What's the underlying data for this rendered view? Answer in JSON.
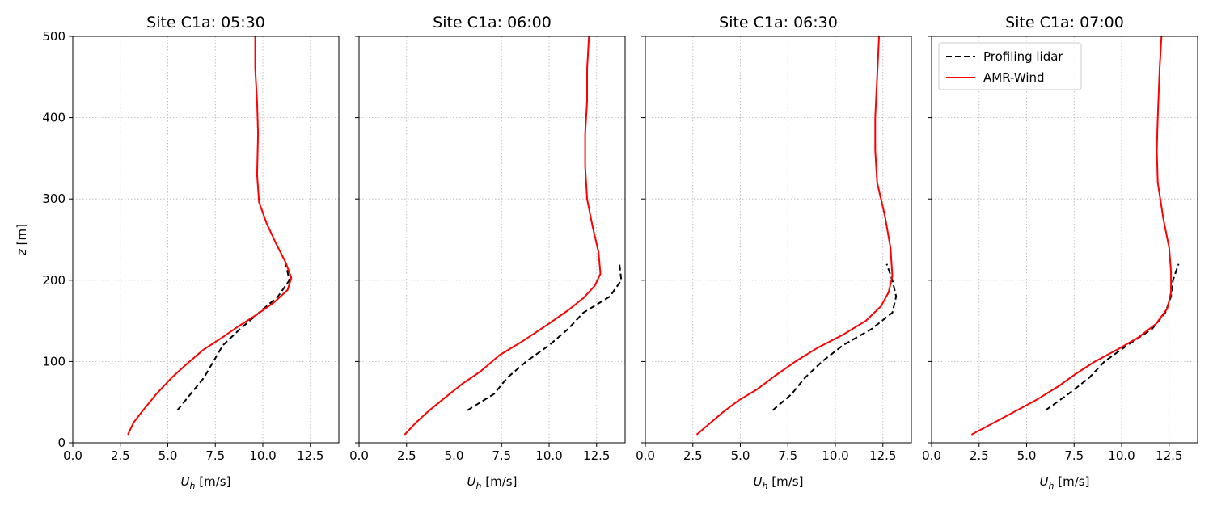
{
  "chart_data": [
    {
      "type": "line",
      "title": "Site C1a: 05:30",
      "xlabel": "U_h [m/s]",
      "ylabel": "z [m]",
      "xlim": [
        0,
        14
      ],
      "ylim": [
        0,
        500
      ],
      "xticks": [
        "0.0",
        "2.5",
        "5.0",
        "7.5",
        "10.0",
        "12.5"
      ],
      "yticks": [
        "0",
        "100",
        "200",
        "300",
        "400",
        "500"
      ],
      "grid": true,
      "series": [
        {
          "name": "Profiling lidar",
          "style": "dashed",
          "color": "#000000",
          "points": [
            [
              5.5,
              40
            ],
            [
              6.2,
              60
            ],
            [
              6.9,
              80
            ],
            [
              7.4,
              100
            ],
            [
              7.9,
              120
            ],
            [
              8.8,
              140
            ],
            [
              9.8,
              160
            ],
            [
              10.8,
              180
            ],
            [
              11.4,
              200
            ],
            [
              11.2,
              220
            ]
          ]
        },
        {
          "name": "AMR-Wind",
          "style": "solid",
          "color": "#ff0000",
          "points": [
            [
              2.9,
              10
            ],
            [
              3.2,
              25
            ],
            [
              3.7,
              40
            ],
            [
              4.4,
              60
            ],
            [
              5.2,
              80
            ],
            [
              6.0,
              97
            ],
            [
              6.9,
              115
            ],
            [
              7.9,
              130
            ],
            [
              8.7,
              143
            ],
            [
              9.7,
              158
            ],
            [
              10.6,
              173
            ],
            [
              11.3,
              188
            ],
            [
              11.5,
              203
            ],
            [
              11.2,
              222
            ],
            [
              10.7,
              245
            ],
            [
              10.2,
              270
            ],
            [
              9.8,
              296
            ],
            [
              9.7,
              330
            ],
            [
              9.75,
              380
            ],
            [
              9.7,
              420
            ],
            [
              9.6,
              460
            ],
            [
              9.6,
              500
            ]
          ]
        }
      ]
    },
    {
      "type": "line",
      "title": "Site C1a: 06:00",
      "xlabel": "U_h [m/s]",
      "ylabel": "",
      "xlim": [
        0,
        14
      ],
      "ylim": [
        0,
        500
      ],
      "xticks": [
        "0.0",
        "2.5",
        "5.0",
        "7.5",
        "10.0",
        "12.5"
      ],
      "grid": true,
      "series": [
        {
          "name": "Profiling lidar",
          "style": "dashed",
          "color": "#000000",
          "points": [
            [
              5.7,
              40
            ],
            [
              7.1,
              60
            ],
            [
              7.8,
              80
            ],
            [
              8.8,
              100
            ],
            [
              10.0,
              120
            ],
            [
              11.0,
              140
            ],
            [
              11.8,
              160
            ],
            [
              13.2,
              180
            ],
            [
              13.8,
              200
            ],
            [
              13.7,
              220
            ]
          ]
        },
        {
          "name": "AMR-Wind",
          "style": "solid",
          "color": "#ff0000",
          "points": [
            [
              2.4,
              10
            ],
            [
              3.0,
              25
            ],
            [
              3.7,
              40
            ],
            [
              4.6,
              57
            ],
            [
              5.4,
              72
            ],
            [
              6.4,
              88
            ],
            [
              7.4,
              108
            ],
            [
              8.6,
              125
            ],
            [
              9.9,
              145
            ],
            [
              11.0,
              163
            ],
            [
              11.8,
              178
            ],
            [
              12.4,
              193
            ],
            [
              12.7,
              208
            ],
            [
              12.6,
              235
            ],
            [
              12.3,
              265
            ],
            [
              12.0,
              300
            ],
            [
              11.9,
              340
            ],
            [
              11.9,
              380
            ],
            [
              12.0,
              420
            ],
            [
              12.0,
              460
            ],
            [
              12.1,
              500
            ]
          ]
        }
      ]
    },
    {
      "type": "line",
      "title": "Site C1a: 06:30",
      "xlabel": "U_h [m/s]",
      "ylabel": "",
      "xlim": [
        0,
        14
      ],
      "ylim": [
        0,
        500
      ],
      "xticks": [
        "0.0",
        "2.5",
        "5.0",
        "7.5",
        "10.0",
        "12.5"
      ],
      "grid": true,
      "series": [
        {
          "name": "Profiling lidar",
          "style": "dashed",
          "color": "#000000",
          "points": [
            [
              6.7,
              40
            ],
            [
              7.7,
              60
            ],
            [
              8.4,
              80
            ],
            [
              9.3,
              100
            ],
            [
              10.4,
              120
            ],
            [
              11.9,
              140
            ],
            [
              13.0,
              160
            ],
            [
              13.2,
              180
            ],
            [
              13.0,
              200
            ],
            [
              12.7,
              220
            ]
          ]
        },
        {
          "name": "AMR-Wind",
          "style": "solid",
          "color": "#ff0000",
          "points": [
            [
              2.7,
              10
            ],
            [
              3.3,
              22
            ],
            [
              4.1,
              38
            ],
            [
              4.9,
              52
            ],
            [
              5.9,
              66
            ],
            [
              6.8,
              82
            ],
            [
              7.9,
              100
            ],
            [
              9.0,
              116
            ],
            [
              10.4,
              133
            ],
            [
              11.6,
              150
            ],
            [
              12.4,
              168
            ],
            [
              12.8,
              185
            ],
            [
              13.0,
              205
            ],
            [
              12.9,
              240
            ],
            [
              12.6,
              280
            ],
            [
              12.2,
              320
            ],
            [
              12.1,
              360
            ],
            [
              12.1,
              400
            ],
            [
              12.2,
              450
            ],
            [
              12.3,
              500
            ]
          ]
        }
      ]
    },
    {
      "type": "line",
      "title": "Site C1a: 07:00",
      "xlabel": "U_h [m/s]",
      "ylabel": "",
      "xlim": [
        0,
        14
      ],
      "ylim": [
        0,
        500
      ],
      "xticks": [
        "0.0",
        "2.5",
        "5.0",
        "7.5",
        "10.0",
        "12.5"
      ],
      "grid": true,
      "legend": {
        "placement": "upper-left",
        "entries": [
          "Profiling lidar",
          "AMR-Wind"
        ]
      },
      "series": [
        {
          "name": "Profiling lidar",
          "style": "dashed",
          "color": "#000000",
          "points": [
            [
              6.0,
              40
            ],
            [
              7.2,
              60
            ],
            [
              8.3,
              80
            ],
            [
              9.1,
              100
            ],
            [
              10.3,
              120
            ],
            [
              11.6,
              140
            ],
            [
              12.3,
              160
            ],
            [
              12.6,
              180
            ],
            [
              12.7,
              200
            ],
            [
              13.0,
              220
            ]
          ]
        },
        {
          "name": "AMR-Wind",
          "style": "solid",
          "color": "#ff0000",
          "points": [
            [
              2.1,
              10
            ],
            [
              3.3,
              25
            ],
            [
              4.5,
              40
            ],
            [
              5.6,
              54
            ],
            [
              6.7,
              70
            ],
            [
              7.6,
              85
            ],
            [
              8.6,
              100
            ],
            [
              9.8,
              115
            ],
            [
              10.9,
              130
            ],
            [
              11.8,
              146
            ],
            [
              12.4,
              165
            ],
            [
              12.6,
              185
            ],
            [
              12.6,
              210
            ],
            [
              12.5,
              240
            ],
            [
              12.2,
              275
            ],
            [
              11.9,
              320
            ],
            [
              11.85,
              360
            ],
            [
              11.9,
              400
            ],
            [
              12.0,
              460
            ],
            [
              12.1,
              500
            ]
          ]
        }
      ]
    }
  ]
}
